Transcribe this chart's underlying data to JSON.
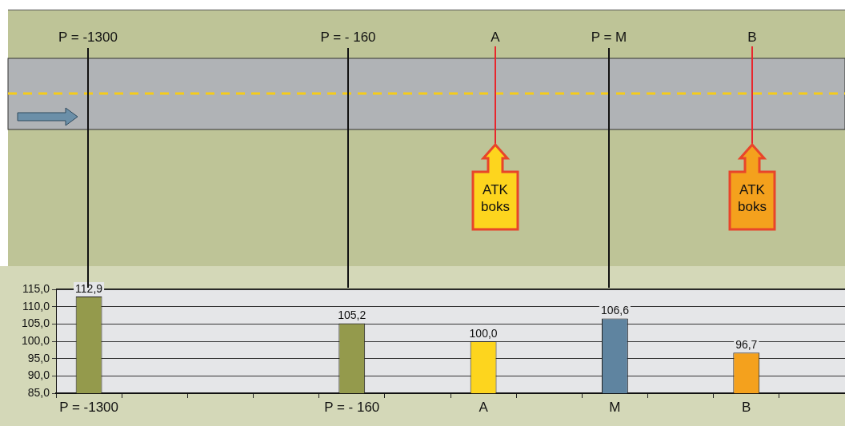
{
  "chart_data": {
    "type": "bar",
    "categories": [
      "P = -1300",
      null,
      null,
      null,
      "P = - 160",
      null,
      "A",
      null,
      "M",
      null,
      "B",
      null
    ],
    "values": [
      112.9,
      null,
      null,
      null,
      105.2,
      null,
      100.0,
      null,
      106.6,
      null,
      96.7,
      null
    ],
    "colors": [
      "#949a4c",
      null,
      null,
      null,
      "#949a4c",
      null,
      "#fdd51e",
      null,
      "#5f84a0",
      null,
      "#f4a11d",
      null
    ],
    "value_labels": [
      "112,9",
      null,
      null,
      null,
      "105,2",
      null,
      "100,0",
      null,
      "106,6",
      null,
      "96,7",
      null
    ],
    "ylim": [
      85,
      115
    ],
    "yticks": [
      {
        "value": 85,
        "label": "85,0"
      },
      {
        "value": 90,
        "label": "90,0"
      },
      {
        "value": 95,
        "label": "95,0"
      },
      {
        "value": 100,
        "label": "100,0"
      },
      {
        "value": 105,
        "label": "105,0"
      },
      {
        "value": 110,
        "label": "110,0"
      },
      {
        "value": 115,
        "label": "115,0"
      }
    ],
    "grid": "y",
    "legend": false,
    "annotations": [
      "P = -1300",
      "P = - 160",
      "A",
      "P = M",
      "B",
      "ATK boks",
      "ATK boks"
    ]
  }
}
